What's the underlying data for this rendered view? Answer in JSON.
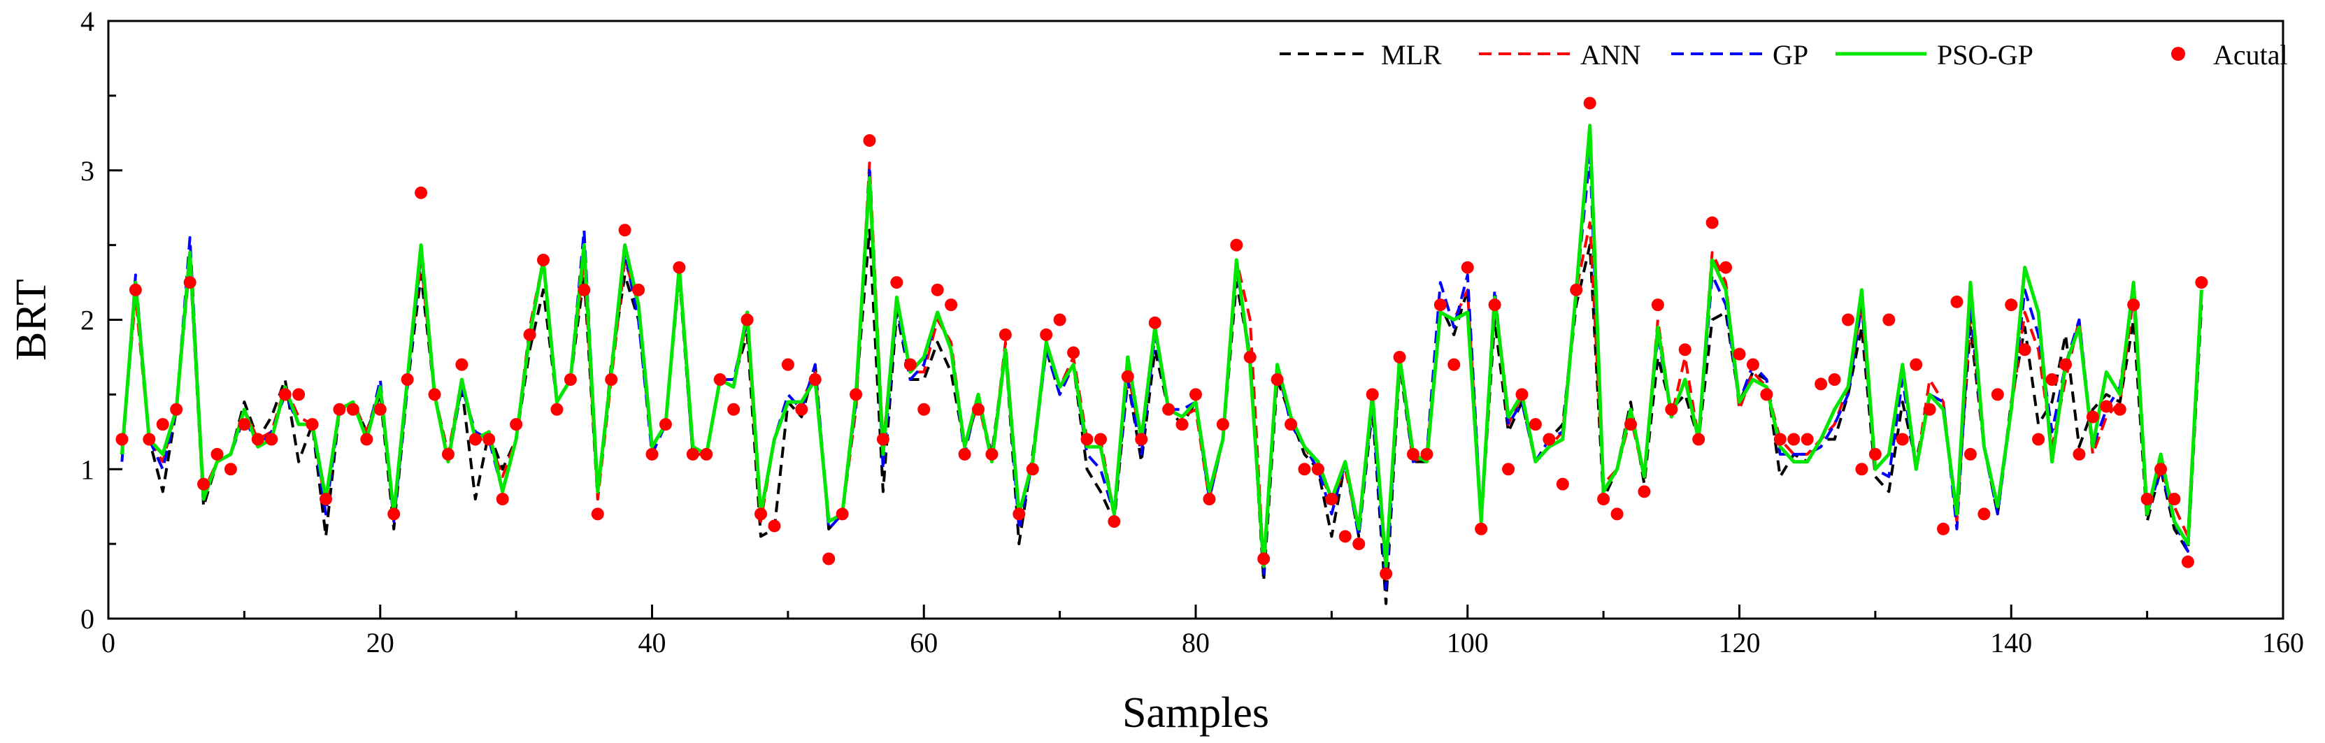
{
  "chart_data": {
    "type": "line",
    "title": "",
    "xlabel": "Samples",
    "ylabel": "BRT",
    "xlim": [
      0,
      160
    ],
    "ylim": [
      0,
      4
    ],
    "xticks": [
      0,
      20,
      40,
      60,
      80,
      100,
      120,
      140,
      160
    ],
    "yticks": [
      0,
      1,
      2,
      3,
      4
    ],
    "xtick_labels": [
      "0",
      "20",
      "40",
      "60",
      "80",
      "100",
      "120",
      "140",
      "160"
    ],
    "ytick_labels": [
      "0",
      "1",
      "2",
      "3",
      "4"
    ],
    "grid": false,
    "legend_position": "top-right",
    "x": [
      1,
      2,
      3,
      4,
      5,
      6,
      7,
      8,
      9,
      10,
      11,
      12,
      13,
      14,
      15,
      16,
      17,
      18,
      19,
      20,
      21,
      22,
      23,
      24,
      25,
      26,
      27,
      28,
      29,
      30,
      31,
      32,
      33,
      34,
      35,
      36,
      37,
      38,
      39,
      40,
      41,
      42,
      43,
      44,
      45,
      46,
      47,
      48,
      49,
      50,
      51,
      52,
      53,
      54,
      55,
      56,
      57,
      58,
      59,
      60,
      61,
      62,
      63,
      64,
      65,
      66,
      67,
      68,
      69,
      70,
      71,
      72,
      73,
      74,
      75,
      76,
      77,
      78,
      79,
      80,
      81,
      82,
      83,
      84,
      85,
      86,
      87,
      88,
      89,
      90,
      91,
      92,
      93,
      94,
      95,
      96,
      97,
      98,
      99,
      100,
      101,
      102,
      103,
      104,
      105,
      106,
      107,
      108,
      109,
      110,
      111,
      112,
      113,
      114,
      115,
      116,
      117,
      118,
      119,
      120,
      121,
      122,
      123,
      124,
      125,
      126,
      127,
      128,
      129,
      130,
      131,
      132,
      133,
      134,
      135,
      136,
      137,
      138,
      139,
      140,
      141,
      142,
      143,
      144,
      145,
      146,
      147,
      148,
      149,
      150,
      151,
      152,
      153,
      154
    ],
    "series": [
      {
        "name": "MLR",
        "color": "#000000",
        "style": "dashed",
        "values": [
          1.1,
          2.2,
          1.2,
          0.85,
          1.4,
          2.4,
          0.75,
          1.05,
          1.1,
          1.45,
          1.2,
          1.35,
          1.6,
          1.05,
          1.3,
          0.55,
          1.4,
          1.45,
          1.25,
          1.5,
          0.6,
          1.55,
          2.3,
          1.5,
          1.1,
          1.55,
          0.8,
          1.25,
          1.0,
          1.2,
          1.8,
          2.2,
          1.45,
          1.6,
          2.3,
          0.8,
          1.7,
          2.3,
          2.0,
          1.15,
          1.3,
          2.3,
          1.1,
          1.1,
          1.6,
          1.6,
          1.9,
          0.55,
          0.6,
          1.45,
          1.35,
          1.7,
          0.6,
          0.7,
          1.5,
          2.6,
          0.85,
          2.05,
          1.6,
          1.6,
          1.85,
          1.65,
          1.15,
          1.45,
          1.1,
          1.8,
          0.5,
          1.1,
          1.8,
          1.5,
          1.7,
          1.0,
          0.85,
          0.65,
          1.6,
          1.05,
          1.8,
          1.4,
          1.3,
          1.45,
          0.8,
          1.2,
          2.25,
          1.75,
          0.25,
          1.6,
          1.35,
          1.1,
          1.0,
          0.55,
          1.05,
          0.55,
          1.4,
          0.1,
          1.7,
          1.05,
          1.05,
          2.1,
          1.9,
          2.2,
          0.65,
          2.0,
          1.25,
          1.45,
          1.05,
          1.2,
          1.3,
          2.1,
          2.5,
          0.8,
          1.0,
          1.45,
          0.9,
          1.75,
          1.4,
          1.5,
          1.2,
          2.0,
          2.05,
          1.45,
          1.65,
          1.6,
          0.95,
          1.1,
          1.05,
          1.2,
          1.2,
          1.5,
          1.95,
          0.95,
          0.85,
          1.45,
          1.05,
          1.5,
          1.4,
          0.7,
          1.95,
          1.15,
          0.7,
          1.45,
          1.95,
          1.3,
          1.45,
          1.9,
          1.15,
          1.4,
          1.5,
          1.45,
          2.0,
          0.65,
          1.0,
          0.6,
          0.45,
          2.1
        ]
      },
      {
        "name": "ANN",
        "color": "#ff0000",
        "style": "dashed",
        "values": [
          1.15,
          2.15,
          1.2,
          1.05,
          1.4,
          2.45,
          0.85,
          1.05,
          1.1,
          1.4,
          1.2,
          1.25,
          1.55,
          1.35,
          1.3,
          0.75,
          1.4,
          1.45,
          1.25,
          1.55,
          0.7,
          1.6,
          2.4,
          1.5,
          1.1,
          1.6,
          1.2,
          1.2,
          0.95,
          1.2,
          1.95,
          2.4,
          1.45,
          1.6,
          2.4,
          0.8,
          1.6,
          2.4,
          2.1,
          1.15,
          1.3,
          2.35,
          1.1,
          1.1,
          1.6,
          1.55,
          2.0,
          0.65,
          1.2,
          1.45,
          1.45,
          1.65,
          0.65,
          0.7,
          1.4,
          3.05,
          1.15,
          2.15,
          1.65,
          1.65,
          2.0,
          1.85,
          1.15,
          1.45,
          1.05,
          1.85,
          0.7,
          1.05,
          1.85,
          1.55,
          1.75,
          1.2,
          1.2,
          0.7,
          1.65,
          1.2,
          1.95,
          1.4,
          1.35,
          1.4,
          0.8,
          1.2,
          2.4,
          2.0,
          0.35,
          1.65,
          1.35,
          1.15,
          1.0,
          0.8,
          1.0,
          0.6,
          1.45,
          0.3,
          1.75,
          1.05,
          1.1,
          2.05,
          2.0,
          2.2,
          0.65,
          2.15,
          1.3,
          1.5,
          1.05,
          1.15,
          1.25,
          2.2,
          2.65,
          0.9,
          1.0,
          1.35,
          0.95,
          2.0,
          1.35,
          1.75,
          1.2,
          2.45,
          2.25,
          1.4,
          1.65,
          1.55,
          1.2,
          1.1,
          1.1,
          1.2,
          1.3,
          1.55,
          2.1,
          1.0,
          1.1,
          1.7,
          1.0,
          1.6,
          1.45,
          0.65,
          2.05,
          1.15,
          0.75,
          1.4,
          2.05,
          1.8,
          1.15,
          1.6,
          2.0,
          1.1,
          1.35,
          1.45,
          2.15,
          0.75,
          1.0,
          0.75,
          0.55,
          2.2
        ]
      },
      {
        "name": "GP",
        "color": "#0000ff",
        "style": "dashed",
        "values": [
          1.05,
          2.3,
          1.2,
          1.0,
          1.4,
          2.55,
          0.8,
          1.05,
          1.1,
          1.35,
          1.15,
          1.25,
          1.5,
          1.3,
          1.3,
          0.7,
          1.4,
          1.45,
          1.2,
          1.6,
          0.65,
          1.55,
          2.45,
          1.5,
          1.05,
          1.55,
          1.25,
          1.2,
          0.85,
          1.2,
          1.9,
          2.4,
          1.45,
          1.6,
          2.6,
          0.85,
          1.65,
          2.45,
          2.0,
          1.1,
          1.3,
          2.35,
          1.1,
          1.1,
          1.6,
          1.6,
          2.0,
          0.7,
          1.2,
          1.5,
          1.4,
          1.7,
          0.6,
          0.7,
          1.45,
          3.0,
          1.0,
          2.1,
          1.6,
          1.7,
          2.05,
          1.8,
          1.1,
          1.5,
          1.05,
          1.8,
          0.6,
          1.05,
          1.8,
          1.5,
          1.7,
          1.1,
          1.0,
          0.7,
          1.6,
          1.1,
          1.9,
          1.4,
          1.4,
          1.45,
          0.8,
          1.2,
          2.35,
          1.75,
          0.3,
          1.7,
          1.3,
          1.15,
          1.0,
          0.7,
          1.05,
          0.55,
          1.45,
          0.2,
          1.75,
          1.05,
          1.1,
          2.25,
          1.95,
          2.3,
          0.65,
          2.2,
          1.3,
          1.45,
          1.05,
          1.2,
          1.25,
          2.2,
          3.1,
          0.85,
          1.0,
          1.4,
          0.95,
          1.9,
          1.35,
          1.6,
          1.2,
          2.3,
          2.1,
          1.45,
          1.7,
          1.6,
          1.1,
          1.1,
          1.1,
          1.15,
          1.3,
          1.5,
          2.1,
          1.0,
          0.95,
          1.6,
          1.0,
          1.5,
          1.45,
          0.6,
          2.1,
          1.15,
          0.7,
          1.4,
          2.2,
          1.9,
          1.25,
          1.7,
          2.0,
          1.15,
          1.4,
          1.55,
          2.2,
          0.7,
          1.0,
          0.65,
          0.45,
          2.2
        ]
      },
      {
        "name": "PSO-GP",
        "color": "#00e600",
        "style": "solid",
        "values": [
          1.1,
          2.25,
          1.2,
          1.1,
          1.4,
          2.45,
          0.8,
          1.05,
          1.1,
          1.4,
          1.15,
          1.2,
          1.55,
          1.3,
          1.3,
          0.8,
          1.4,
          1.45,
          1.2,
          1.55,
          0.7,
          1.6,
          2.5,
          1.5,
          1.05,
          1.6,
          1.2,
          1.25,
          0.85,
          1.2,
          1.9,
          2.4,
          1.45,
          1.6,
          2.5,
          0.85,
          1.65,
          2.5,
          2.1,
          1.15,
          1.3,
          2.35,
          1.15,
          1.1,
          1.6,
          1.55,
          2.05,
          0.7,
          1.2,
          1.45,
          1.45,
          1.6,
          0.65,
          0.7,
          1.5,
          2.95,
          1.1,
          2.15,
          1.65,
          1.75,
          2.05,
          1.8,
          1.15,
          1.5,
          1.05,
          1.8,
          0.7,
          1.05,
          1.85,
          1.55,
          1.7,
          1.15,
          1.15,
          0.7,
          1.75,
          1.2,
          1.95,
          1.4,
          1.35,
          1.45,
          0.85,
          1.2,
          2.4,
          1.7,
          0.35,
          1.7,
          1.35,
          1.15,
          1.05,
          0.8,
          1.05,
          0.6,
          1.5,
          0.35,
          1.75,
          1.1,
          1.05,
          2.05,
          2.0,
          2.05,
          0.65,
          2.15,
          1.35,
          1.5,
          1.05,
          1.15,
          1.2,
          2.2,
          3.3,
          0.85,
          1.0,
          1.4,
          0.95,
          1.95,
          1.35,
          1.6,
          1.2,
          2.4,
          2.2,
          1.45,
          1.6,
          1.55,
          1.15,
          1.05,
          1.05,
          1.2,
          1.4,
          1.55,
          2.2,
          1.0,
          1.1,
          1.7,
          1.0,
          1.5,
          1.4,
          0.7,
          2.25,
          1.15,
          0.75,
          1.4,
          2.35,
          2.05,
          1.05,
          1.7,
          1.95,
          1.15,
          1.65,
          1.5,
          2.25,
          0.7,
          1.1,
          0.65,
          0.5,
          2.2
        ]
      },
      {
        "name": "Acutal",
        "color": "#ff0000",
        "style": "markers",
        "values": [
          1.2,
          2.2,
          1.2,
          1.3,
          1.4,
          2.25,
          0.9,
          1.1,
          1.0,
          1.3,
          1.2,
          1.2,
          1.5,
          1.5,
          1.3,
          0.8,
          1.4,
          1.4,
          1.2,
          1.4,
          0.7,
          1.6,
          2.85,
          1.5,
          1.1,
          1.7,
          1.2,
          1.2,
          0.8,
          1.3,
          1.9,
          2.4,
          1.4,
          1.6,
          2.2,
          0.7,
          1.6,
          2.6,
          2.2,
          1.1,
          1.3,
          2.35,
          1.1,
          1.1,
          1.6,
          1.4,
          2.0,
          0.7,
          0.62,
          1.7,
          1.4,
          1.6,
          0.4,
          0.7,
          1.5,
          3.2,
          1.2,
          2.25,
          1.7,
          1.4,
          2.2,
          2.1,
          1.1,
          1.4,
          1.1,
          1.9,
          0.7,
          1.0,
          1.9,
          2.0,
          1.78,
          1.2,
          1.2,
          0.65,
          1.62,
          1.2,
          1.98,
          1.4,
          1.3,
          1.5,
          0.8,
          1.3,
          2.5,
          1.75,
          0.4,
          1.6,
          1.3,
          1.0,
          1.0,
          0.8,
          0.55,
          0.5,
          1.5,
          0.3,
          1.75,
          1.1,
          1.1,
          2.1,
          1.7,
          2.35,
          0.6,
          2.1,
          1.0,
          1.5,
          1.3,
          1.2,
          0.9,
          2.2,
          3.45,
          0.8,
          0.7,
          1.3,
          0.85,
          2.1,
          1.4,
          1.8,
          1.2,
          2.65,
          2.35,
          1.77,
          1.7,
          1.5,
          1.2,
          1.2,
          1.2,
          1.57,
          1.6,
          2.0,
          1.0,
          1.1,
          2.0,
          1.2,
          1.7,
          1.4,
          0.6,
          2.12,
          1.1,
          0.7,
          1.5,
          2.1,
          1.8,
          1.2,
          1.6,
          1.7,
          1.1,
          1.35,
          1.42,
          1.4,
          2.1,
          0.8,
          1.0,
          0.8,
          0.38,
          2.25
        ]
      }
    ]
  }
}
